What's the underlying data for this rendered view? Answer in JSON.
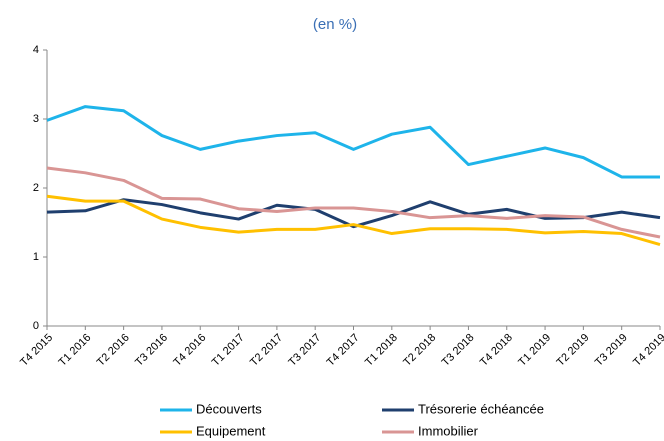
{
  "chart_data": {
    "type": "line",
    "title": "(en %)",
    "categories": [
      "T4 2015",
      "T1 2016",
      "T2 2016",
      "T3 2016",
      "T4 2016",
      "T1 2017",
      "T2 2017",
      "T3 2017",
      "T4 2017",
      "T1 2018",
      "T2 2018",
      "T3 2018",
      "T4 2018",
      "T1 2019",
      "T2 2019",
      "T3 2019",
      "T4 2019"
    ],
    "series": [
      {
        "name": "Découverts",
        "color": "#1eb4ea",
        "values": [
          2.98,
          3.18,
          3.12,
          2.76,
          2.56,
          2.68,
          2.76,
          2.8,
          2.56,
          2.78,
          2.88,
          2.34,
          2.46,
          2.58,
          2.44,
          2.16,
          2.16
        ]
      },
      {
        "name": "Trésorerie échéancée",
        "color": "#1f3f6e",
        "values": [
          1.65,
          1.67,
          1.83,
          1.76,
          1.64,
          1.55,
          1.75,
          1.69,
          1.44,
          1.6,
          1.8,
          1.62,
          1.69,
          1.56,
          1.57,
          1.65,
          1.57
        ]
      },
      {
        "name": "Equipement",
        "color": "#ffc000",
        "values": [
          1.88,
          1.81,
          1.81,
          1.55,
          1.43,
          1.36,
          1.4,
          1.4,
          1.47,
          1.34,
          1.41,
          1.41,
          1.4,
          1.35,
          1.37,
          1.34,
          1.18
        ]
      },
      {
        "name": "Immobilier",
        "color": "#d99594",
        "values": [
          2.29,
          2.22,
          2.11,
          1.85,
          1.84,
          1.7,
          1.66,
          1.71,
          1.71,
          1.66,
          1.57,
          1.6,
          1.56,
          1.6,
          1.58,
          1.4,
          1.29
        ]
      }
    ],
    "ylim": [
      0,
      4
    ],
    "yticks": [
      0,
      1,
      2,
      3,
      4
    ],
    "grid": false
  }
}
